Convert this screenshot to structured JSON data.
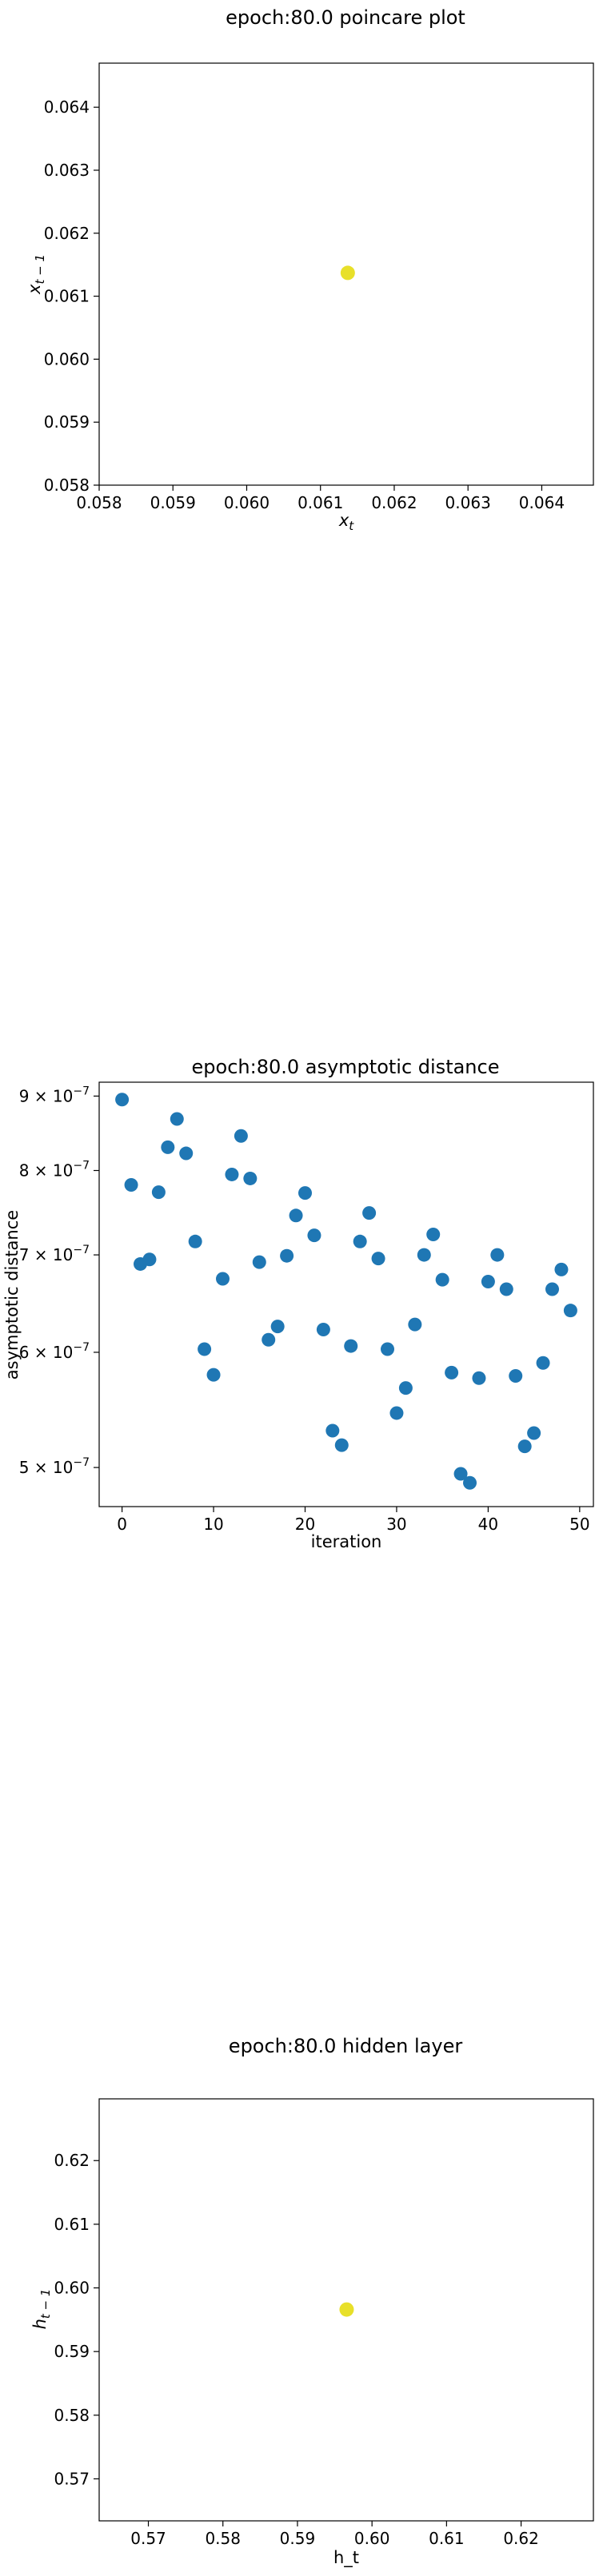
{
  "chart_data": [
    {
      "type": "scatter",
      "title": "epoch:80.0 poincare plot",
      "xlabel": "x",
      "xlabel_sub": "t",
      "ylabel": "x",
      "ylabel_sub": "t − 1",
      "xlim": [
        0.058,
        0.0647
      ],
      "ylim": [
        0.058,
        0.0647
      ],
      "xticks": [
        0.058,
        0.059,
        0.06,
        0.061,
        0.062,
        0.063,
        0.064
      ],
      "xtick_labels": [
        "0.058",
        "0.059",
        "0.060",
        "0.061",
        "0.062",
        "0.063",
        "0.064"
      ],
      "yticks": [
        0.058,
        0.059,
        0.06,
        0.061,
        0.062,
        0.063,
        0.064
      ],
      "ytick_labels": [
        "0.058",
        "0.059",
        "0.060",
        "0.061",
        "0.062",
        "0.063",
        "0.064"
      ],
      "points": [
        {
          "x": 0.06137,
          "y": 0.06137
        }
      ],
      "color": "#e8e02a"
    },
    {
      "type": "scatter",
      "title": "epoch:80.0 asymptotic distance",
      "xlabel": "iteration",
      "ylabel": "asymptotic distance",
      "yscale": "log",
      "xlim": [
        -2.5,
        51.5
      ],
      "ylim": [
        4.7e-07,
        9.2e-07
      ],
      "xticks": [
        0,
        10,
        20,
        30,
        40,
        50
      ],
      "xtick_labels": [
        "0",
        "10",
        "20",
        "30",
        "40",
        "50"
      ],
      "yticks": [
        5e-07,
        6e-07,
        7e-07,
        8e-07,
        9e-07
      ],
      "ytick_labels": [
        {
          "base": "5 × 10",
          "exp": "−7"
        },
        {
          "base": "6 × 10",
          "exp": "−7"
        },
        {
          "base": "7 × 10",
          "exp": "−7"
        },
        {
          "base": "8 × 10",
          "exp": "−7"
        },
        {
          "base": "9 × 10",
          "exp": "−7"
        }
      ],
      "x": [
        0,
        1,
        2,
        3,
        4,
        5,
        6,
        7,
        8,
        9,
        10,
        11,
        12,
        13,
        14,
        15,
        16,
        17,
        18,
        19,
        20,
        21,
        22,
        23,
        24,
        25,
        26,
        27,
        28,
        29,
        30,
        31,
        32,
        33,
        34,
        35,
        36,
        37,
        38,
        39,
        40,
        41,
        42,
        43,
        44,
        45,
        46,
        47,
        48,
        49
      ],
      "y": [
        8.95e-07,
        7.82e-07,
        6.9e-07,
        6.95e-07,
        7.73e-07,
        8.3e-07,
        8.68e-07,
        8.22e-07,
        7.15e-07,
        6.03e-07,
        5.79e-07,
        6.74e-07,
        7.95e-07,
        8.45e-07,
        7.9e-07,
        6.92e-07,
        6.12e-07,
        6.25e-07,
        6.99e-07,
        7.45e-07,
        7.72e-07,
        7.22e-07,
        6.22e-07,
        5.3e-07,
        5.18e-07,
        6.06e-07,
        7.15e-07,
        7.48e-07,
        6.96e-07,
        6.03e-07,
        5.45e-07,
        5.67e-07,
        6.27e-07,
        7e-07,
        7.23e-07,
        6.73e-07,
        5.81e-07,
        4.95e-07,
        4.88e-07,
        5.76e-07,
        6.71e-07,
        7e-07,
        6.63e-07,
        5.78e-07,
        5.17e-07,
        5.28e-07,
        5.9e-07,
        6.63e-07,
        6.84e-07,
        6.41e-07
      ],
      "color": "#1f77b4"
    },
    {
      "type": "scatter",
      "title": "epoch:80.0 hidden layer",
      "xlabel": "h_t",
      "ylabel": "h",
      "ylabel_sub": "t − 1",
      "xlim": [
        0.5634,
        0.6297
      ],
      "ylim": [
        0.5634,
        0.6297
      ],
      "xticks": [
        0.57,
        0.58,
        0.59,
        0.6,
        0.61,
        0.62
      ],
      "xtick_labels": [
        "0.57",
        "0.58",
        "0.59",
        "0.60",
        "0.61",
        "0.62"
      ],
      "yticks": [
        0.57,
        0.58,
        0.59,
        0.6,
        0.61,
        0.62
      ],
      "ytick_labels": [
        "0.57",
        "0.58",
        "0.59",
        "0.60",
        "0.61",
        "0.62"
      ],
      "points": [
        {
          "x": 0.5966,
          "y": 0.5966
        }
      ],
      "color": "#e8e02a"
    }
  ]
}
